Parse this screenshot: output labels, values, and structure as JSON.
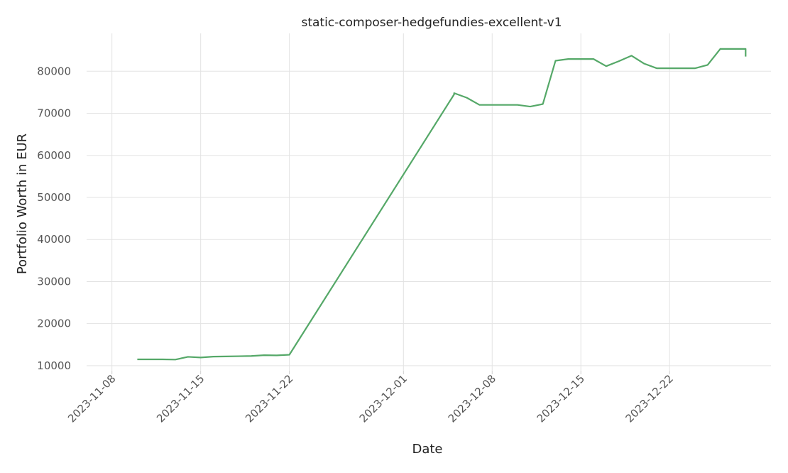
{
  "chart_data": {
    "type": "line",
    "title": "static-composer-hedgefundies-excellent-v1",
    "xlabel": "Date",
    "ylabel": "Portfolio Worth in EUR",
    "x_type": "date",
    "xlim": [
      "2023-11-06",
      "2023-12-30"
    ],
    "ylim": [
      8800,
      89000
    ],
    "x_ticks": [
      "2023-11-08",
      "2023-11-15",
      "2023-11-22",
      "2023-12-01",
      "2023-12-08",
      "2023-12-15",
      "2023-12-22"
    ],
    "y_ticks": [
      10000,
      20000,
      30000,
      40000,
      50000,
      60000,
      70000,
      80000
    ],
    "grid": true,
    "legend": "none",
    "series": [
      {
        "color": "#55a868",
        "points": [
          [
            "2023-11-10",
            11500
          ],
          [
            "2023-11-11",
            11500
          ],
          [
            "2023-11-12",
            11500
          ],
          [
            "2023-11-13",
            11450
          ],
          [
            "2023-11-14",
            12100
          ],
          [
            "2023-11-15",
            11950
          ],
          [
            "2023-11-16",
            12150
          ],
          [
            "2023-11-17",
            12200
          ],
          [
            "2023-11-18",
            12250
          ],
          [
            "2023-11-19",
            12300
          ],
          [
            "2023-11-20",
            12500
          ],
          [
            "2023-11-21",
            12450
          ],
          [
            "2023-11-22",
            12600
          ],
          [
            "2023-12-05",
            74500
          ],
          [
            "2023-12-05",
            74800
          ],
          [
            "2023-12-06",
            73700
          ],
          [
            "2023-12-07",
            72000
          ],
          [
            "2023-12-08",
            72000
          ],
          [
            "2023-12-09",
            72000
          ],
          [
            "2023-12-10",
            72000
          ],
          [
            "2023-12-11",
            71600
          ],
          [
            "2023-12-12",
            72200
          ],
          [
            "2023-12-13",
            82500
          ],
          [
            "2023-12-14",
            82900
          ],
          [
            "2023-12-15",
            82900
          ],
          [
            "2023-12-16",
            82900
          ],
          [
            "2023-12-17",
            81200
          ],
          [
            "2023-12-18",
            82400
          ],
          [
            "2023-12-19",
            83700
          ],
          [
            "2023-12-20",
            81800
          ],
          [
            "2023-12-21",
            80700
          ],
          [
            "2023-12-22",
            80700
          ],
          [
            "2023-12-23",
            80700
          ],
          [
            "2023-12-24",
            80700
          ],
          [
            "2023-12-25",
            81500
          ],
          [
            "2023-12-26",
            85300
          ],
          [
            "2023-12-27",
            85300
          ],
          [
            "2023-12-28",
            85300
          ],
          [
            "2023-12-28",
            83500
          ]
        ]
      }
    ]
  }
}
